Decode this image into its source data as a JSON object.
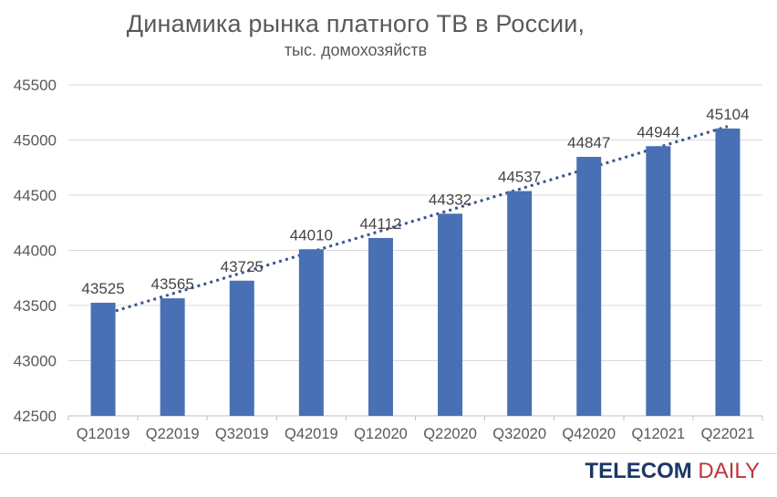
{
  "chart_data": {
    "type": "bar",
    "title": "Динамика рынка платного ТВ в России,",
    "subtitle": "тыс. домохозяйств",
    "categories": [
      "Q12019",
      "Q22019",
      "Q32019",
      "Q42019",
      "Q12020",
      "Q22020",
      "Q32020",
      "Q42020",
      "Q12021",
      "Q22021"
    ],
    "values": [
      43525,
      43565,
      43725,
      44010,
      44112,
      44332,
      44537,
      44847,
      44944,
      45104
    ],
    "ylim": [
      42500,
      45500
    ],
    "ytick_step": 500,
    "yticks": [
      42500,
      43000,
      43500,
      44000,
      44500,
      45000,
      45500
    ],
    "grid": true,
    "legend_position": "none",
    "data_labels": true,
    "trendline": {
      "type": "linear",
      "style": "dotted"
    },
    "colors": {
      "bar": "#4970b4",
      "trendline": "#3a5490",
      "grid": "#d9d9d9",
      "axis": "#bfbfbf",
      "tick_text": "#595959",
      "value_label": "#444444",
      "title_text": "#595959"
    }
  },
  "footer": {
    "logo": {
      "telecom": "TELECOM",
      "daily": "DAILY"
    },
    "colors": {
      "telecom": "#1c3667",
      "daily": "#c0333b"
    }
  }
}
